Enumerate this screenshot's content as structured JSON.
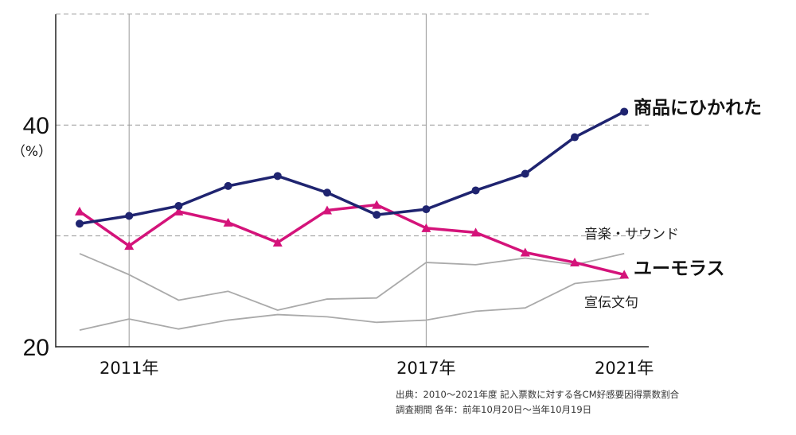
{
  "chart_data": {
    "type": "line",
    "y_tick_labels": [
      "40",
      "20"
    ],
    "y_unit": "（%）",
    "x_tick_labels": [
      "2011年",
      "2017年",
      "2021年"
    ],
    "ylim": [
      20,
      50
    ],
    "grid": "dashed horizontal lines; vertical lines at 2011 and 2017",
    "x": [
      2010,
      2011,
      2012,
      2013,
      2014,
      2015,
      2016,
      2017,
      2018,
      2019,
      2020,
      2021
    ],
    "series": [
      {
        "name": "商品にひかれた",
        "color": "#1f2470",
        "marker": "circle",
        "values": [
          31.1,
          31.8,
          32.7,
          34.5,
          35.4,
          33.9,
          31.9,
          32.4,
          34.1,
          35.6,
          38.9,
          41.2
        ],
        "label_style": "bold"
      },
      {
        "name": "ユーモラス",
        "color": "#d4137a",
        "marker": "triangle",
        "values": [
          32.2,
          29.1,
          32.2,
          31.2,
          29.4,
          32.3,
          32.8,
          30.7,
          30.3,
          28.5,
          27.6,
          26.5
        ],
        "label_style": "bold"
      },
      {
        "name": "音楽・サウンド",
        "color": "#aaaaaa",
        "marker": "none",
        "values": [
          28.4,
          26.5,
          24.2,
          25.0,
          23.3,
          24.3,
          24.4,
          27.6,
          27.4,
          28.0,
          27.4,
          28.4
        ],
        "label_style": "plain"
      },
      {
        "name": "宣伝文句",
        "color": "#aaaaaa",
        "marker": "none",
        "values": [
          21.5,
          22.5,
          21.6,
          22.4,
          22.9,
          22.7,
          22.2,
          22.4,
          23.2,
          23.5,
          25.7,
          26.2
        ],
        "label_style": "plain"
      }
    ]
  },
  "source_note": {
    "line1": "出典：2010〜2021年度 記入票数に対する各CM好感要因得票数割合",
    "line2": "調査期間 各年：前年10月20日〜当年10月19日"
  }
}
